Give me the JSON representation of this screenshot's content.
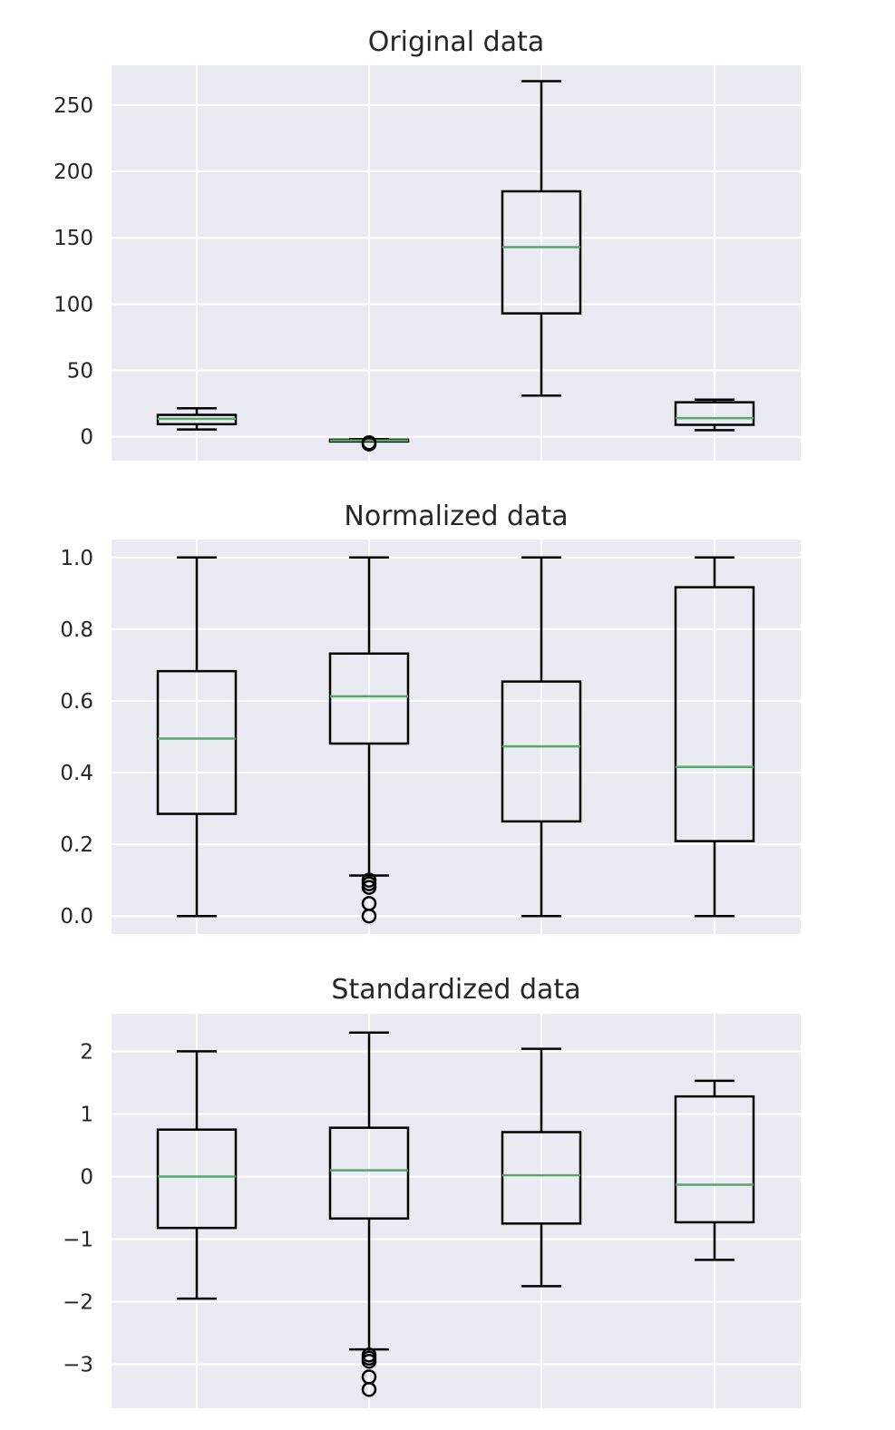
{
  "chart_data": [
    {
      "type": "box",
      "title": "Original data",
      "xlabel": "",
      "ylabel": "",
      "ylim": [
        -18,
        280
      ],
      "yticks": [
        0,
        50,
        100,
        150,
        200,
        250
      ],
      "ytick_labels": [
        "0",
        "50",
        "100",
        "150",
        "200",
        "250"
      ],
      "grid": true,
      "boxes": [
        {
          "whisker_low": 5.5,
          "q1": 9.5,
          "median": 13.5,
          "q3": 16.5,
          "whisker_high": 21.5,
          "outliers": []
        },
        {
          "whisker_low": -3.5,
          "q1": -3.3,
          "median": -2.8,
          "q3": -2.2,
          "whisker_high": -1.8,
          "outliers": [
            -4.5,
            -5.5
          ]
        },
        {
          "whisker_low": 31,
          "q1": 93,
          "median": 143,
          "q3": 185,
          "whisker_high": 268,
          "outliers": []
        },
        {
          "whisker_low": 5,
          "q1": 9,
          "median": 14,
          "q3": 26,
          "whisker_high": 28,
          "outliers": []
        }
      ]
    },
    {
      "type": "box",
      "title": "Normalized data",
      "xlabel": "",
      "ylabel": "",
      "ylim": [
        -0.05,
        1.05
      ],
      "yticks": [
        0.0,
        0.2,
        0.4,
        0.6,
        0.8,
        1.0
      ],
      "ytick_labels": [
        "0.0",
        "0.2",
        "0.4",
        "0.6",
        "0.8",
        "1.0"
      ],
      "grid": true,
      "boxes": [
        {
          "whisker_low": 0.0,
          "q1": 0.285,
          "median": 0.495,
          "q3": 0.683,
          "whisker_high": 1.0,
          "outliers": []
        },
        {
          "whisker_low": 0.113,
          "q1": 0.481,
          "median": 0.613,
          "q3": 0.732,
          "whisker_high": 1.0,
          "outliers": [
            0.1,
            0.09,
            0.08,
            0.035,
            0.0
          ]
        },
        {
          "whisker_low": 0.0,
          "q1": 0.264,
          "median": 0.473,
          "q3": 0.654,
          "whisker_high": 1.0,
          "outliers": []
        },
        {
          "whisker_low": 0.0,
          "q1": 0.209,
          "median": 0.416,
          "q3": 0.917,
          "whisker_high": 1.0,
          "outliers": []
        }
      ]
    },
    {
      "type": "box",
      "title": "Standardized data",
      "xlabel": "",
      "ylabel": "",
      "ylim": [
        -3.7,
        2.6
      ],
      "yticks": [
        -3,
        -2,
        -1,
        0,
        1,
        2
      ],
      "ytick_labels": [
        "−3",
        "−2",
        "−1",
        "0",
        "1",
        "2"
      ],
      "grid": true,
      "boxes": [
        {
          "whisker_low": -1.95,
          "q1": -0.82,
          "median": 0.0,
          "q3": 0.75,
          "whisker_high": 2.0,
          "outliers": []
        },
        {
          "whisker_low": -2.76,
          "q1": -0.67,
          "median": 0.1,
          "q3": 0.78,
          "whisker_high": 2.3,
          "outliers": [
            -2.85,
            -2.9,
            -2.95,
            -3.2,
            -3.4
          ]
        },
        {
          "whisker_low": -1.75,
          "q1": -0.75,
          "median": 0.02,
          "q3": 0.71,
          "whisker_high": 2.04,
          "outliers": []
        },
        {
          "whisker_low": -1.33,
          "q1": -0.73,
          "median": -0.13,
          "q3": 1.28,
          "whisker_high": 1.53,
          "outliers": []
        }
      ]
    }
  ],
  "colors": {
    "figure_bg": "#ffffff",
    "axes_bg": "#eaeaf2",
    "grid": "#ffffff",
    "box_line": "#000000",
    "median": "#55a868",
    "text": "#262626"
  }
}
